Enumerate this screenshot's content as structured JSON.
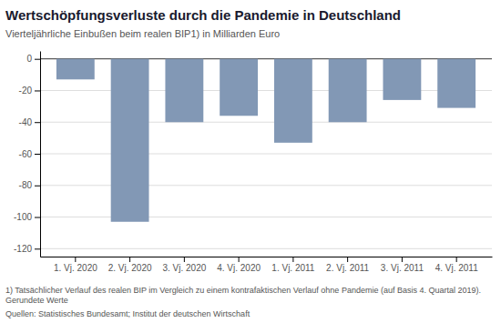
{
  "chart_data": {
    "type": "bar",
    "title": "Wertschöpfungsverluste durch die Pandemie in Deutschland",
    "subtitle": "Vierteljährliche Einbußen beim realen BIP1) in Milliarden Euro",
    "categories": [
      "1. Vj. 2020",
      "2. Vj. 2020",
      "3. Vj. 2020",
      "4. Vj. 2020",
      "1. Vj. 2011",
      "2. Vj. 2011",
      "3. Vj. 2011",
      "4. Vj. 2011"
    ],
    "values": [
      -13,
      -103,
      -40,
      -36,
      -53,
      -40,
      -26,
      -31
    ],
    "color": "#8298b5",
    "ylim": [
      -125,
      5
    ],
    "yticks": [
      0,
      -20,
      -40,
      -60,
      -80,
      -100,
      -120
    ],
    "grid": true,
    "footnote": "1) Tatsächlicher Verlauf des realen BIP im Vergleich zu einem kontrafaktischen Verlauf ohne Pandemie (auf Basis 4. Quartal 2019). Gerundete Werte",
    "source": "Quellen: Statistisches Bundesamt; Institut der deutschen Wirtschaft"
  }
}
